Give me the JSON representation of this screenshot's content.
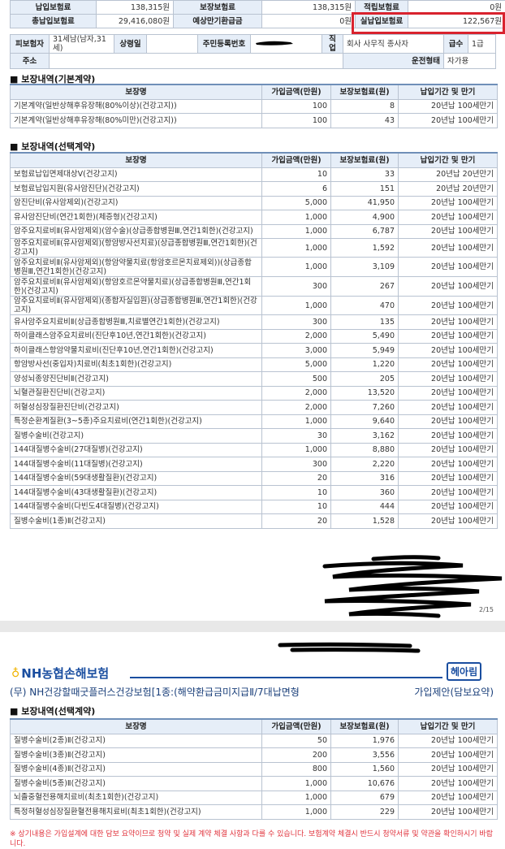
{
  "summary": {
    "row1": [
      {
        "label": "납입보험료",
        "value": "138,315원"
      },
      {
        "label": "보장보험료",
        "value": "138,315원"
      },
      {
        "label": "적립보험료",
        "value": "0원"
      }
    ],
    "row2": [
      {
        "label": "총납입보험료",
        "value": "29,416,080원"
      },
      {
        "label": "예상만기환급금",
        "value": "0원"
      },
      {
        "label": "실납입보험료",
        "value": "122,567원"
      }
    ],
    "highlight_color": "#d9232e"
  },
  "insured": {
    "insured_label": "피보험자",
    "insured_value": "31세남(남자,31세)",
    "age_label": "상령일",
    "age_value": "",
    "rrn_label": "주민등록번호",
    "job_label": "직업",
    "job_value": "회사 사무직 종사자",
    "grade_label": "급수",
    "grade_value": "1급",
    "address_label": "주소",
    "address_value": "",
    "drive_label": "운전형태",
    "drive_value": "자가용"
  },
  "columns": [
    "보장명",
    "가입금액(만원)",
    "보장보험료(원)",
    "납입기간 및 만기"
  ],
  "basic": {
    "title": "■ 보장내역(기본계약)",
    "rows": [
      [
        "기본계약(일반상해후유장해(80%이상)(건강고지))",
        "100",
        "8",
        "20년납 100세만기"
      ],
      [
        "기본계약(일반상해후유장해(80%미만)(건강고지))",
        "100",
        "43",
        "20년납 100세만기"
      ]
    ]
  },
  "optional": {
    "title": "■ 보장내역(선택계약)",
    "rows": [
      [
        "보험료납입면제대상Ⅴ(건강고지)",
        "10",
        "33",
        "20년납 20년만기"
      ],
      [
        "보험료납입지원(유사암진단)(건강고지)",
        "6",
        "151",
        "20년납 20년만기"
      ],
      [
        "암진단비(유사암제외)(건강고지)",
        "5,000",
        "41,950",
        "20년납 100세만기"
      ],
      [
        "유사암진단비(연간1회한)(체증형)(건강고지)",
        "1,000",
        "4,900",
        "20년납 100세만기"
      ],
      [
        "암주요치료비Ⅱ(유사암제외)(암수술)(상급종합병원Ⅲ,연간1회한)(건강고지)",
        "1,000",
        "6,787",
        "20년납 100세만기"
      ],
      [
        "암주요치료비Ⅱ(유사암제외)(항암방사선치료)(상급종합병원Ⅲ,연간1회한)(건강고지)",
        "1,000",
        "1,592",
        "20년납 100세만기"
      ],
      [
        "암주요치료비Ⅱ(유사암제외)(항암약물치료(항암호르몬치료제외))(상급종합병원Ⅲ,연간1회한)(건강고지)",
        "1,000",
        "3,109",
        "20년납 100세만기"
      ],
      [
        "암주요치료비Ⅱ(유사암제외)(항암호르몬약물치료)(상급종합병원Ⅲ,연간1회한)(건강고지)",
        "300",
        "267",
        "20년납 100세만기"
      ],
      [
        "암주요치료비Ⅱ(유사암제외)(종합자실입원)(상급종합병원Ⅲ,연간1회한)(건강고지)",
        "1,000",
        "470",
        "20년납 100세만기"
      ],
      [
        "유사암주요치료비Ⅱ(상급종합병원Ⅲ,치료별연간1회한)(건강고지)",
        "300",
        "135",
        "20년납 100세만기"
      ],
      [
        "하이클래스암주요치료비(진단후10년,연간1회한)(건강고지)",
        "2,000",
        "5,490",
        "20년납 100세만기"
      ],
      [
        "하이클래스항암약물치료비(진단후10년,연간1회한)(건강고지)",
        "3,000",
        "5,949",
        "20년납 100세만기"
      ],
      [
        "항암방사선(중입자)치료비(최초1회한)(건강고지)",
        "5,000",
        "1,220",
        "20년납 100세만기"
      ],
      [
        "양성뇌종양진단비Ⅱ(건강고지)",
        "500",
        "205",
        "20년납 100세만기"
      ],
      [
        "뇌혈관질환진단비(건강고지)",
        "2,000",
        "13,520",
        "20년납 100세만기"
      ],
      [
        "허혈성심장질환진단비(건강고지)",
        "2,000",
        "7,260",
        "20년납 100세만기"
      ],
      [
        "특정순환계질환(3~5종)주요치료비(연간1회한)(건강고지)",
        "1,000",
        "9,640",
        "20년납 100세만기"
      ],
      [
        "질병수술비(건강고지)",
        "30",
        "3,162",
        "20년납 100세만기"
      ],
      [
        "144대질병수술비(27대질병)(건강고지)",
        "1,000",
        "8,880",
        "20년납 100세만기"
      ],
      [
        "144대질병수술비(11대질병)(건강고지)",
        "300",
        "2,220",
        "20년납 100세만기"
      ],
      [
        "144대질병수술비(59대생활질환)(건강고지)",
        "20",
        "316",
        "20년납 100세만기"
      ],
      [
        "144대질병수술비(43대생활질환)(건강고지)",
        "10",
        "360",
        "20년납 100세만기"
      ],
      [
        "144대질병수술비(다빈도4대질병)(건강고지)",
        "10",
        "444",
        "20년납 100세만기"
      ],
      [
        "질병수술비(1종)Ⅱ(건강고지)",
        "20",
        "1,528",
        "20년납 100세만기"
      ]
    ]
  },
  "page_number": "2/15",
  "page2": {
    "logo": "NH농협손해보험",
    "brand": "헤아림",
    "product_title": "(무) NH건강할때굿플러스건강보험[1종:(해약환급금미지급Ⅱ/7대납면형",
    "doc_type": "가입제안(담보요약)",
    "optional": {
      "title": "■ 보장내역(선택계약)",
      "rows": [
        [
          "질병수술비(2종)Ⅱ(건강고지)",
          "50",
          "1,976",
          "20년납 100세만기"
        ],
        [
          "질병수술비(3종)Ⅱ(건강고지)",
          "200",
          "3,556",
          "20년납 100세만기"
        ],
        [
          "질병수술비(4종)Ⅱ(건강고지)",
          "800",
          "1,560",
          "20년납 100세만기"
        ],
        [
          "질병수술비(5종)Ⅱ(건강고지)",
          "1,000",
          "10,676",
          "20년납 100세만기"
        ],
        [
          "뇌졸중혈전용해치료비(최초1회한)(건강고지)",
          "1,000",
          "679",
          "20년납 100세만기"
        ],
        [
          "특정허혈성심장질환혈전용해치료비(최초1회한)(건강고지)",
          "1,000",
          "229",
          "20년납 100세만기"
        ]
      ]
    },
    "note": "※ 상기내용은 가입설계에 대한 담보 요약이므로 청약 및 실제 계약 체결 사항과 다를 수 있습니다. 보험계약 체결시 반드시 청약서류 및 약관을 확인하시기 바랍니다."
  }
}
